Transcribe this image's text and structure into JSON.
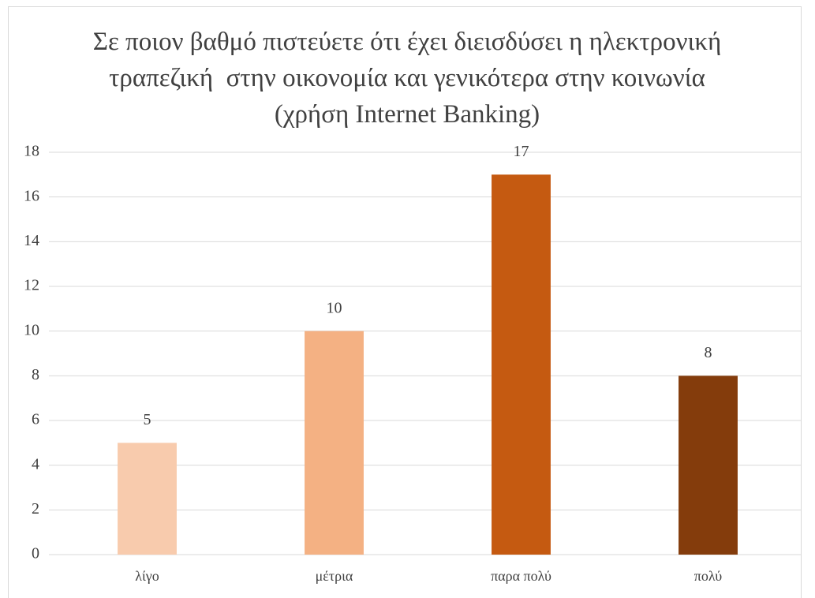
{
  "chart_data": {
    "type": "bar",
    "title": "Σε ποιον βαθμό πιστεύετε ότι έχει διεισδύσει η ηλεκτρονική τραπεζική  στην οικονομία και γενικότερα στην κοινωνία (χρήση Internet Banking)",
    "categories": [
      "λίγο",
      "μέτρια",
      "παρα πολύ",
      "πολύ"
    ],
    "values": [
      5,
      10,
      17,
      8
    ],
    "colors": [
      "#f8cbad",
      "#f4b183",
      "#c55a11",
      "#843c0c"
    ],
    "ylim": [
      0,
      18
    ],
    "yticks": [
      0,
      2,
      4,
      6,
      8,
      10,
      12,
      14,
      16,
      18
    ],
    "grid": true
  }
}
